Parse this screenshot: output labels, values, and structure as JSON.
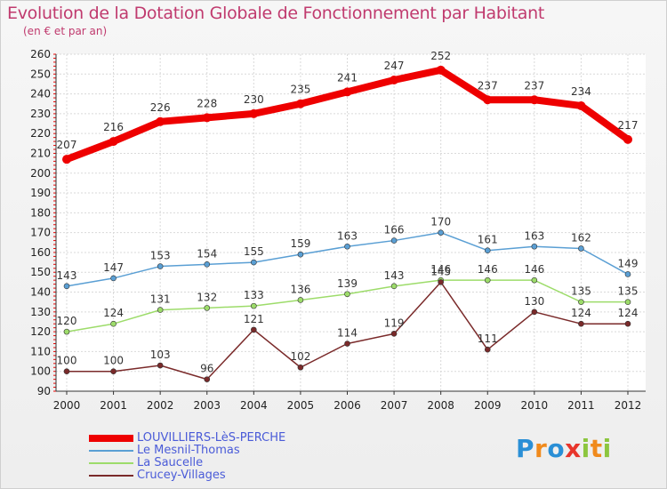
{
  "title": "Evolution de la Dotation Globale de Fonctionnement par Habitant",
  "subtitle": "(en € et par an)",
  "logo": "Proxiti",
  "logo_letters": [
    "P",
    "r",
    "o",
    "x",
    "i",
    "t",
    "i"
  ],
  "chart_data": {
    "type": "line",
    "title": "Evolution de la Dotation Globale de Fonctionnement par Habitant",
    "ylabel": "(en € et par an)",
    "xlabel": "",
    "categories": [
      "2000",
      "2001",
      "2002",
      "2003",
      "2004",
      "2005",
      "2006",
      "2007",
      "2008",
      "2009",
      "2010",
      "2011",
      "2012"
    ],
    "y_ticks": [
      "90",
      "100",
      "110",
      "120",
      "130",
      "140",
      "150",
      "160",
      "170",
      "180",
      "190",
      "200",
      "210",
      "220",
      "230",
      "240",
      "250",
      "260"
    ],
    "ylim": [
      90,
      260
    ],
    "grid": true,
    "legend_position": "bottom-left",
    "series": [
      {
        "name": "LOUVILLIERS-LèS-PERCHE",
        "color": "#ee0000",
        "values": [
          207,
          216,
          226,
          228,
          230,
          235,
          241,
          247,
          252,
          237,
          237,
          234,
          217
        ]
      },
      {
        "name": "Le Mesnil-Thomas",
        "color": "#5a9fd4",
        "values": [
          143,
          147,
          153,
          154,
          155,
          159,
          163,
          166,
          170,
          161,
          163,
          162,
          149
        ]
      },
      {
        "name": "La Saucelle",
        "color": "#9ddc6a",
        "values": [
          120,
          124,
          131,
          132,
          133,
          136,
          139,
          143,
          146,
          146,
          146,
          135,
          135
        ]
      },
      {
        "name": "Crucey-Villages",
        "color": "#7a2a2a",
        "values": [
          100,
          100,
          103,
          96,
          121,
          102,
          114,
          119,
          145,
          111,
          130,
          124,
          124
        ]
      }
    ]
  }
}
